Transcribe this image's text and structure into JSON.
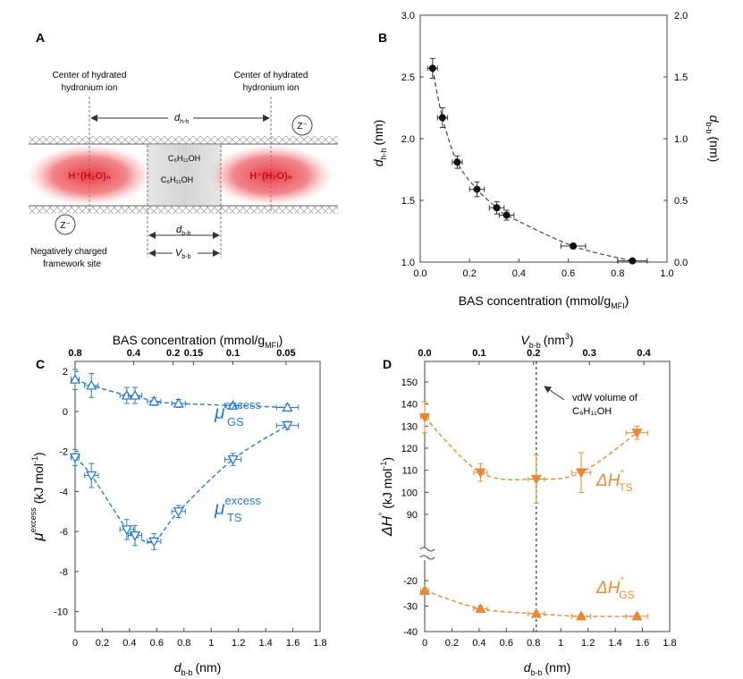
{
  "panels": {
    "A": {
      "label": "A",
      "center_left": [
        "Center of hydrated",
        "hydronium ion"
      ],
      "center_right": [
        "Center of hydrated",
        "hydronium ion"
      ],
      "dhh": {
        "base": "d",
        "sub": "h-h"
      },
      "dbb": {
        "base": "d",
        "sub": "b-b"
      },
      "vbb": {
        "base": "V",
        "sub": "b-b"
      },
      "ion_left": "H⁺(H₂O)ₙ",
      "ion_right": "H⁺(H₂O)ₙ",
      "molecule_top": "C₆H₁₁OH",
      "molecule_bottom": "C₆H₁₁OH",
      "z_label": "Z⁻",
      "neg_label": [
        "Negatively charged",
        "framework site"
      ]
    },
    "B": {
      "label": "B"
    },
    "C": {
      "label": "C"
    },
    "D": {
      "label": "D"
    }
  },
  "chart_data": [
    {
      "id": "B",
      "type": "scatter",
      "title": "",
      "xlabel": "BAS concentration (mmol/g",
      "xlabel_sub": "MFI",
      "ylabel": "d",
      "ylabel_sub": "h-h",
      "ylabel_unit": "(nm)",
      "y2label": "d",
      "y2label_sub": "b-b",
      "y2label_unit": "(nm)",
      "xlim": [
        0.0,
        1.0
      ],
      "ylim": [
        1.0,
        3.0
      ],
      "y2lim": [
        0.0,
        2.0
      ],
      "xticks": [
        "0.0",
        "0.2",
        "0.4",
        "0.6",
        "0.8",
        "1.0"
      ],
      "yticks": [
        "1.0",
        "1.5",
        "2.0",
        "2.5",
        "3.0"
      ],
      "y2ticks": [
        "0.0",
        "0.5",
        "1.0",
        "1.5",
        "2.0"
      ],
      "series": [
        {
          "name": "d_h-h",
          "x": [
            0.05,
            0.09,
            0.15,
            0.23,
            0.31,
            0.35,
            0.62,
            0.86
          ],
          "y": [
            2.57,
            2.17,
            1.81,
            1.59,
            1.44,
            1.38,
            1.13,
            1.01
          ],
          "xerr": [
            0.02,
            0.02,
            0.02,
            0.03,
            0.03,
            0.03,
            0.05,
            0.06
          ],
          "yerr": [
            0.08,
            0.08,
            0.05,
            0.06,
            0.05,
            0.04,
            0.02,
            0.01
          ]
        }
      ],
      "fit": {
        "x0": 0.05,
        "x1": 0.88,
        "style": "dashed"
      }
    },
    {
      "id": "C",
      "type": "line",
      "xlabel": "d",
      "xlabel_sub": "b-b",
      "xlabel_unit": "(nm)",
      "ylabel": "μ",
      "ylabel_sup": "excess",
      "ylabel_unit": "(kJ mol",
      "topxlabel": "BAS concentration (mmol/g",
      "topxlabel_sub": "MFI",
      "xlim": [
        0.0,
        1.8
      ],
      "ylim": [
        -11,
        2.5
      ],
      "xticks": [
        "0",
        "0.2",
        "0.4",
        "0.6",
        "0.8",
        "1",
        "1.2",
        "1.4",
        "1.6",
        "1.8"
      ],
      "yticks": [
        "-10",
        "-8",
        "-6",
        "-4",
        "-2",
        "0",
        "2"
      ],
      "topticks": [
        {
          "label": "0.8",
          "x": 0.0
        },
        {
          "label": "0.4",
          "x": 0.43
        },
        {
          "label": "0.2",
          "x": 0.72
        },
        {
          "label": "0.15",
          "x": 0.87
        },
        {
          "label": "0.1",
          "x": 1.16
        },
        {
          "label": "0.05",
          "x": 1.55
        }
      ],
      "series": [
        {
          "name": "μ excess GS",
          "label_base": "μ",
          "label_sup": "excess",
          "label_sub": "GS",
          "marker": "triangle-up",
          "color": "#2e7bbf",
          "x": [
            0.0,
            0.12,
            0.38,
            0.44,
            0.58,
            0.76,
            1.16,
            1.56
          ],
          "y": [
            1.6,
            1.3,
            0.8,
            0.8,
            0.5,
            0.4,
            0.3,
            0.2
          ],
          "xerr": [
            0.03,
            0.05,
            0.05,
            0.05,
            0.05,
            0.05,
            0.06,
            0.08
          ],
          "yerr": [
            0.5,
            0.6,
            0.4,
            0.4,
            0.2,
            0.2,
            0.1,
            0.15
          ]
        },
        {
          "name": "μ excess TS",
          "label_base": "μ",
          "label_sup": "excess",
          "label_sub": "TS",
          "marker": "triangle-down",
          "color": "#2e7bbf",
          "x": [
            0.0,
            0.12,
            0.38,
            0.44,
            0.58,
            0.76,
            1.16,
            1.56
          ],
          "y": [
            -2.3,
            -3.2,
            -5.9,
            -6.2,
            -6.5,
            -5.0,
            -2.4,
            -0.7
          ],
          "xerr": [
            0.03,
            0.05,
            0.05,
            0.05,
            0.05,
            0.05,
            0.06,
            0.08
          ],
          "yerr": [
            0.4,
            0.6,
            0.5,
            0.5,
            0.4,
            0.3,
            0.3,
            0.2
          ]
        }
      ]
    },
    {
      "id": "D",
      "type": "line",
      "xlabel": "d",
      "xlabel_sub": "b-b",
      "xlabel_unit": "(nm)",
      "ylabel": "ΔH",
      "ylabel_sup": "°",
      "ylabel_unit": "(kJ mol",
      "topxlabel": "V",
      "topxlabel_sub": "b-b",
      "topxlabel_unit": "(nm",
      "xlim": [
        0.0,
        1.8
      ],
      "xticks": [
        "0",
        "0.2",
        "0.4",
        "0.6",
        "0.8",
        "1",
        "1.2",
        "1.4",
        "1.6",
        "1.8"
      ],
      "yticks_upper": [
        "90",
        "100",
        "110",
        "120",
        "130",
        "140",
        "150"
      ],
      "yticks_lower": [
        "-40",
        "-30",
        "-20"
      ],
      "topticks": [
        {
          "label": "0.0",
          "x": 0.0
        },
        {
          "label": "0.1",
          "x": 0.4
        },
        {
          "label": "0.2",
          "x": 0.8
        },
        {
          "label": "0.3",
          "x": 1.21
        },
        {
          "label": "0.4",
          "x": 1.61
        }
      ],
      "vdw_line_x": 0.82,
      "annotation": [
        "vdW volume of",
        "C₆H₁₁OH"
      ],
      "series": [
        {
          "name": "ΔH° TS",
          "label_base": "ΔH",
          "label_sup": "°",
          "label_sub": "TS",
          "marker": "triangle-down",
          "color": "#e08a3a",
          "x": [
            0.0,
            0.41,
            0.82,
            1.15,
            1.56
          ],
          "y": [
            134,
            109,
            106,
            109,
            127
          ],
          "xerr": [
            0.03,
            0.05,
            0.06,
            0.07,
            0.08
          ],
          "yerr": [
            7,
            4,
            11,
            9,
            3
          ]
        },
        {
          "name": "ΔH° GS",
          "label_base": "ΔH",
          "label_sup": "°",
          "label_sub": "GS",
          "marker": "triangle-up",
          "color": "#e08a3a",
          "x": [
            0.0,
            0.41,
            0.82,
            1.15,
            1.56
          ],
          "y": [
            -24,
            -31,
            -33,
            -34,
            -34
          ],
          "xerr": [
            0.03,
            0.05,
            0.06,
            0.07,
            0.08
          ],
          "yerr": [
            1,
            1,
            1,
            1,
            1
          ]
        }
      ]
    }
  ]
}
